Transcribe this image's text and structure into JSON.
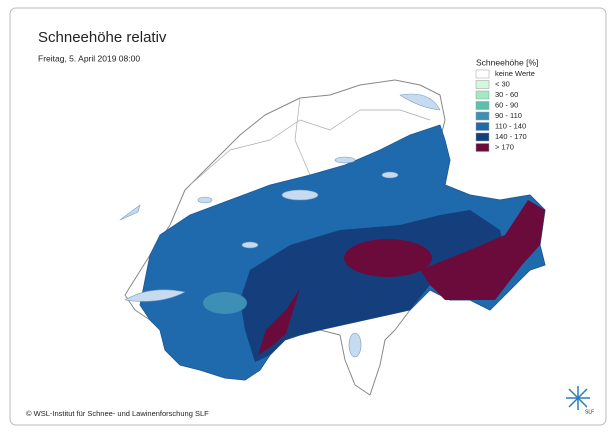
{
  "map": {
    "title": "Schneehöhe relativ",
    "subtitle": "Freitag, 5. April 2019 08:00",
    "legend": {
      "title": "Schneehöhe [%]",
      "items": [
        {
          "label": "keine Werte",
          "color": "#ffffff"
        },
        {
          "label": "< 30",
          "color": "#d4f7de"
        },
        {
          "label": "30 - 60",
          "color": "#a3e9c4"
        },
        {
          "label": "60 - 90",
          "color": "#5cbfa8"
        },
        {
          "label": "90 - 110",
          "color": "#3d8fb5"
        },
        {
          "label": "110 - 140",
          "color": "#1f6aad"
        },
        {
          "label": "140 - 170",
          "color": "#143f7c"
        },
        {
          "label": "> 170",
          "color": "#6a0b3c"
        }
      ]
    },
    "copyright": "© WSL-Institut für Schnee- und Lawinenforschung SLF",
    "logo": "SLF"
  }
}
